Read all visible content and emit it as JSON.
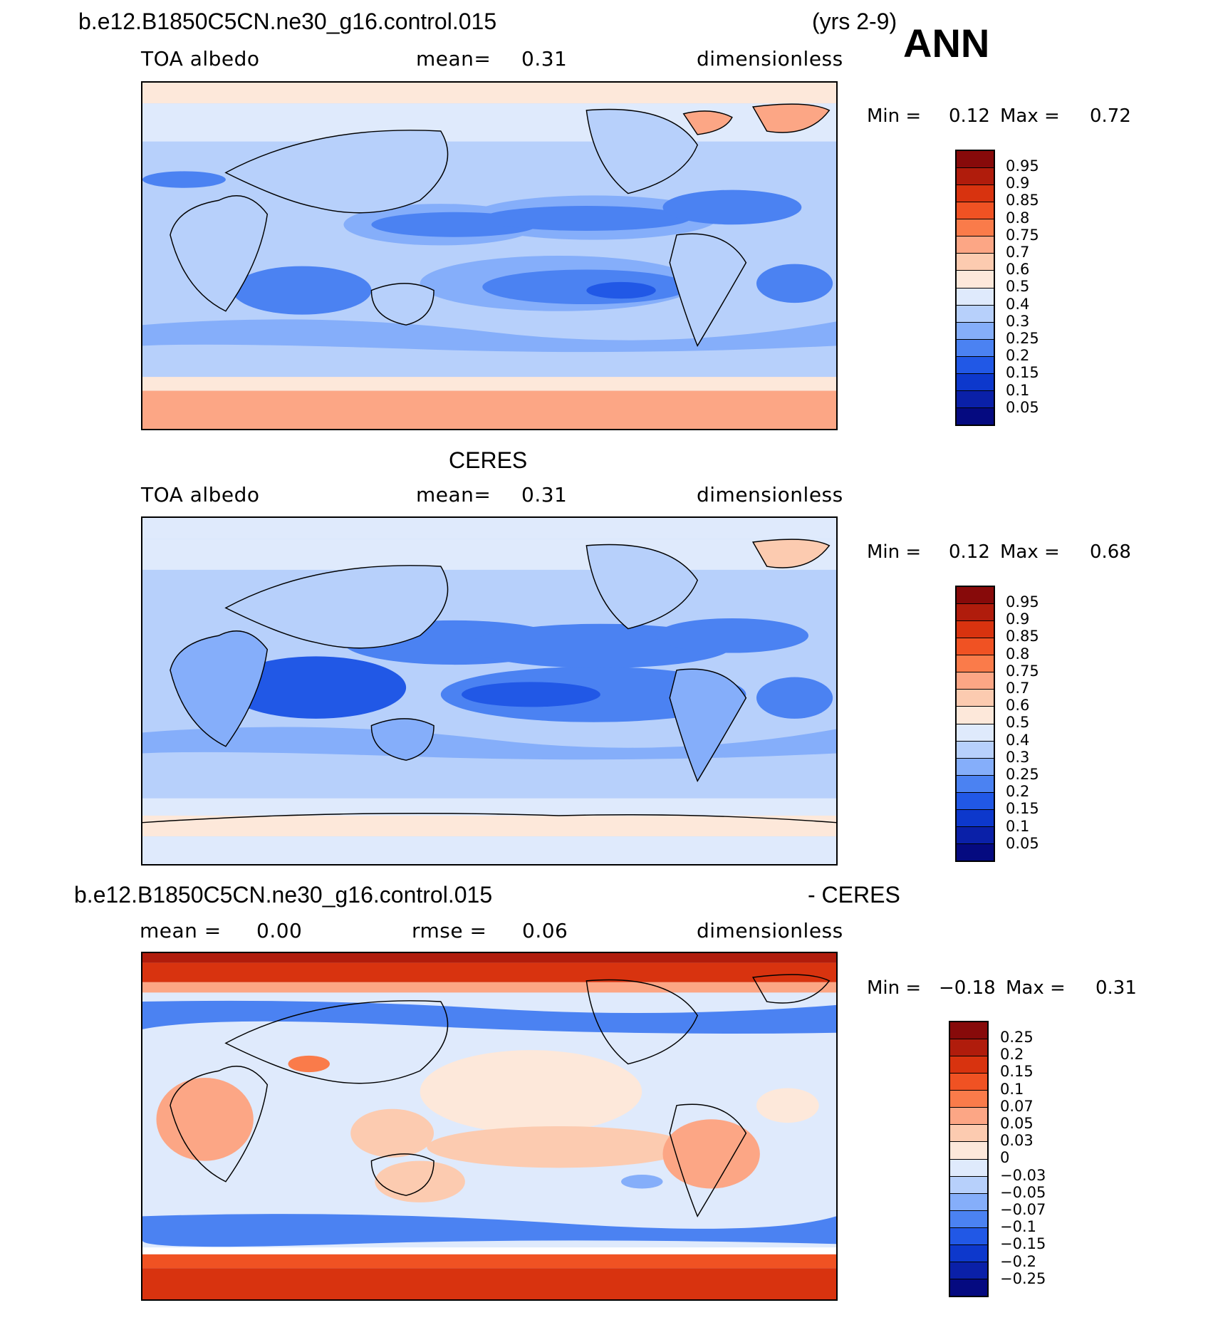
{
  "header": {
    "case_name": "b.e12.B1850C5CN.ne30_g16.control.015",
    "years": "(yrs 2-9)",
    "season": "ANN"
  },
  "panels": [
    {
      "id": "model",
      "title": "",
      "left_label": "TOA albedo",
      "center_label": "mean=",
      "center_value": "0.31",
      "units": "dimensionless",
      "min_label": "Min  =",
      "min_value": "0.12",
      "max_label": "Max  =",
      "max_value": "0.72",
      "levels": [
        "0.95",
        "0.9",
        "0.85",
        "0.8",
        "0.75",
        "0.7",
        "0.6",
        "0.5",
        "0.4",
        "0.3",
        "0.25",
        "0.2",
        "0.15",
        "0.1",
        "0.05"
      ],
      "colors": [
        "#870a0a",
        "#b01c0c",
        "#d8330f",
        "#f05223",
        "#fa7b4a",
        "#fca685",
        "#fccbb0",
        "#fde8da",
        "#dfeafc",
        "#b7d0fb",
        "#85aefa",
        "#4b82f2",
        "#2158e6",
        "#0d38cc",
        "#0a20a8",
        "#050a80"
      ]
    },
    {
      "id": "obs",
      "title": "CERES",
      "left_label": "TOA albedo",
      "center_label": "mean=",
      "center_value": "0.31",
      "units": "dimensionless",
      "min_label": "Min  =",
      "min_value": "0.12",
      "max_label": "Max  =",
      "max_value": "0.68",
      "levels": [
        "0.95",
        "0.9",
        "0.85",
        "0.8",
        "0.75",
        "0.7",
        "0.6",
        "0.5",
        "0.4",
        "0.3",
        "0.25",
        "0.2",
        "0.15",
        "0.1",
        "0.05"
      ],
      "colors": [
        "#870a0a",
        "#b01c0c",
        "#d8330f",
        "#f05223",
        "#fa7b4a",
        "#fca685",
        "#fccbb0",
        "#fde8da",
        "#dfeafc",
        "#b7d0fb",
        "#85aefa",
        "#4b82f2",
        "#2158e6",
        "#0d38cc",
        "#0a20a8",
        "#050a80"
      ]
    },
    {
      "id": "diff",
      "title_left": "b.e12.B1850C5CN.ne30_g16.control.015",
      "title_right": "- CERES",
      "left_label": "mean =",
      "left_value": "0.00",
      "center_label": "rmse =",
      "center_value": "0.06",
      "units": "dimensionless",
      "min_label": "Min  =",
      "min_value": "−0.18",
      "max_label": "Max  =",
      "max_value": "0.31",
      "levels": [
        "0.25",
        "0.2",
        "0.15",
        "0.1",
        "0.07",
        "0.05",
        "0.03",
        "0",
        "−0.03",
        "−0.05",
        "−0.07",
        "−0.1",
        "−0.15",
        "−0.2",
        "−0.25"
      ],
      "colors": [
        "#870a0a",
        "#b01c0c",
        "#d8330f",
        "#f05223",
        "#fa7b4a",
        "#fca685",
        "#fccbb0",
        "#fde8da",
        "#dfeafc",
        "#b7d0fb",
        "#85aefa",
        "#4b82f2",
        "#2158e6",
        "#0d38cc",
        "#0a20a8",
        "#050a80"
      ]
    }
  ]
}
